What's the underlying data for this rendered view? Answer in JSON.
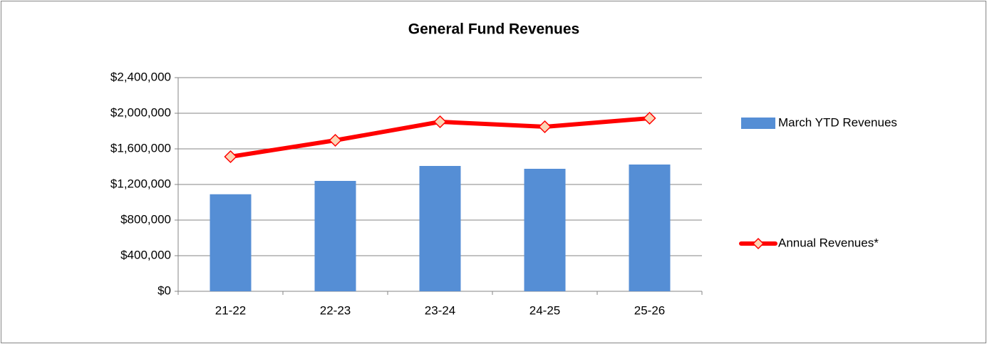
{
  "chart_data": {
    "type": "bar",
    "title": "General Fund Revenues",
    "categories": [
      "21-22",
      "22-23",
      "23-24",
      "24-25",
      "25-26"
    ],
    "series": [
      {
        "name": "March YTD Revenues",
        "type": "bar",
        "color": "#558ed5",
        "values": [
          1090000,
          1240000,
          1408000,
          1376000,
          1424000
        ]
      },
      {
        "name": "Annual Revenues*",
        "type": "line",
        "color": "#ff0000",
        "marker_color": "#fcd5b5",
        "values": [
          1512000,
          1696000,
          1904000,
          1848000,
          1944000
        ]
      }
    ],
    "ylim": [
      0,
      2400000
    ],
    "yticks": [
      {
        "value": 0,
        "label": "$0"
      },
      {
        "value": 400000,
        "label": "$400,000"
      },
      {
        "value": 800000,
        "label": "$800,000"
      },
      {
        "value": 1200000,
        "label": "$1,200,000"
      },
      {
        "value": 1600000,
        "label": "$1,600,000"
      },
      {
        "value": 2000000,
        "label": "$2,000,000"
      },
      {
        "value": 2400000,
        "label": "$2,400,000"
      }
    ],
    "grid": true,
    "legend": "right"
  }
}
